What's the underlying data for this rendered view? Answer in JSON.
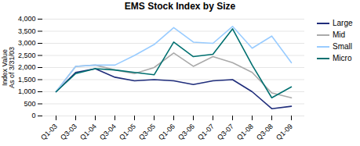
{
  "chart_data": {
    "type": "line",
    "title": "EMS Stock Index by Size",
    "ylabel": "Index Value\nAs of 3/31/03",
    "categories": [
      "Q1-03",
      "Q3-03",
      "Q1-04",
      "Q3-04",
      "Q1-05",
      "Q3-05",
      "Q1-06",
      "Q3-06",
      "Q1-07",
      "Q3-07",
      "Q1-08",
      "Q3-08",
      "Q1-09"
    ],
    "series": [
      {
        "name": "Large",
        "color": "#1F2D7B",
        "values": [
          1000,
          1800,
          1950,
          1600,
          1450,
          1500,
          1450,
          1300,
          1450,
          1500,
          1000,
          300,
          400
        ]
      },
      {
        "name": "Mid",
        "color": "#AAAAAA",
        "values": [
          1000,
          2050,
          2100,
          1900,
          1750,
          2000,
          2600,
          2050,
          2450,
          2200,
          1800,
          950,
          750
        ]
      },
      {
        "name": "Small",
        "color": "#99CCFF",
        "values": [
          1000,
          2050,
          2100,
          2100,
          2500,
          2950,
          3650,
          3050,
          3000,
          3700,
          2800,
          3300,
          2200
        ]
      },
      {
        "name": "Micro",
        "color": "#007070",
        "values": [
          1000,
          1750,
          1950,
          1900,
          1800,
          1700,
          3050,
          2450,
          2550,
          3600,
          2100,
          750,
          1200
        ]
      }
    ],
    "ylim": [
      0,
      4000
    ],
    "yticks": [
      0,
      500,
      {
        "value": 1000,
        "label": "1,000"
      },
      {
        "value": 1500,
        "label": "1,500"
      },
      {
        "value": 2000,
        "label": "2,000"
      },
      {
        "value": 2500,
        "label": "2,500"
      },
      {
        "value": 3000,
        "label": "3,000"
      },
      {
        "value": 3500,
        "label": "3,500"
      },
      {
        "value": 4000,
        "label": "4,000"
      }
    ],
    "grid": true,
    "legend": "right"
  }
}
